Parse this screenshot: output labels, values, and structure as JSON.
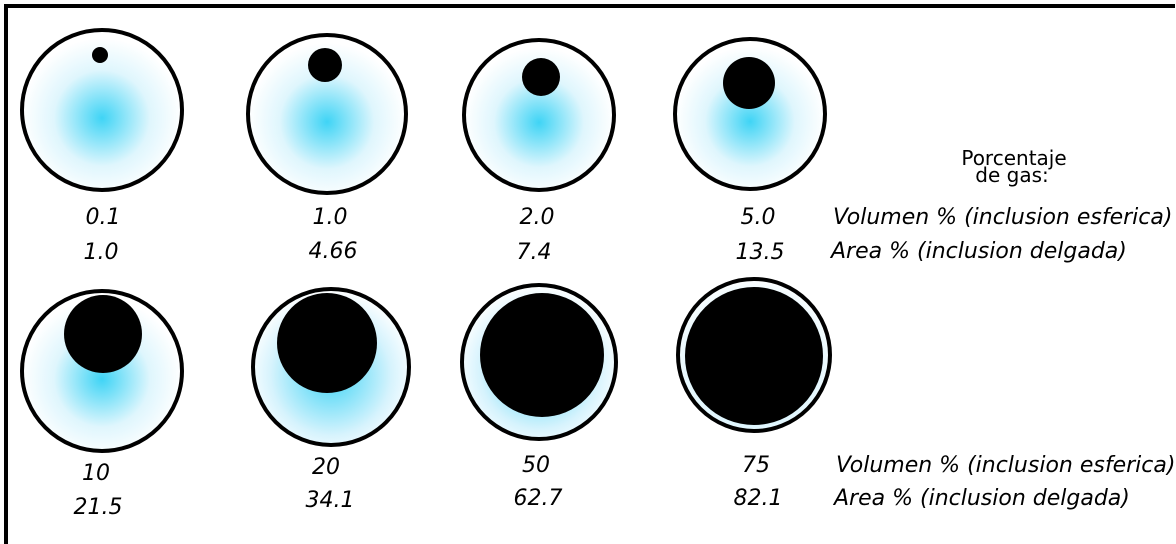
{
  "title": [
    "Porcentaje",
    "de gas:"
  ],
  "row_labels": {
    "volume": "Volumen % (inclusion esferica)",
    "area": "Area % (inclusion delgada)"
  },
  "samples": [
    {
      "volume": "0.1",
      "area": "1.0"
    },
    {
      "volume": "1.0",
      "area": "4.66"
    },
    {
      "volume": "2.0",
      "area": "7.4"
    },
    {
      "volume": "5.0",
      "area": "13.5"
    },
    {
      "volume": "10",
      "area": "21.5"
    },
    {
      "volume": "20",
      "area": "34.1"
    },
    {
      "volume": "50",
      "area": "62.7"
    },
    {
      "volume": "75",
      "area": "82.1"
    }
  ],
  "colors": {
    "glow": "#3fd4f5",
    "bubble": "#000000",
    "outline": "#000000"
  }
}
